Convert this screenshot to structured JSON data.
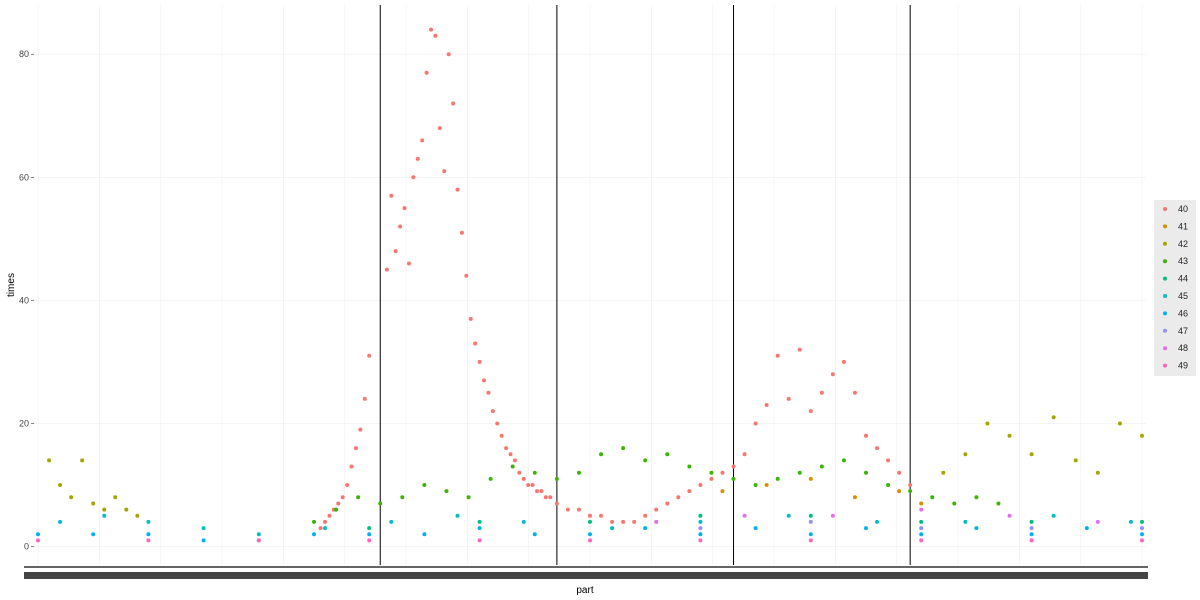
{
  "chart_data": {
    "type": "scatter",
    "title": "",
    "xlabel": "part",
    "ylabel": "times",
    "ylim": [
      -3,
      88
    ],
    "yticks": [
      0,
      20,
      40,
      60,
      80
    ],
    "y_tick_labels": [
      "0",
      "20",
      "40",
      "60",
      "80"
    ],
    "xlim": [
      0,
      1000
    ],
    "x_tick_labels_overplotted": true,
    "grid": true,
    "legend_position": "right",
    "vlines": [
      310,
      470,
      630,
      790
    ],
    "colors": {
      "40": "#F8766D",
      "41": "#D89000",
      "42": "#A3A500",
      "43": "#39B600",
      "44": "#00BF7D",
      "45": "#00BFC4",
      "46": "#00B0F6",
      "47": "#9590FF",
      "48": "#E76BF3",
      "49": "#FF62BC"
    },
    "series": [
      {
        "name": "40",
        "points": [
          [
            316,
            45
          ],
          [
            320,
            57
          ],
          [
            324,
            48
          ],
          [
            328,
            52
          ],
          [
            332,
            55
          ],
          [
            336,
            46
          ],
          [
            340,
            60
          ],
          [
            344,
            63
          ],
          [
            348,
            66
          ],
          [
            352,
            77
          ],
          [
            356,
            84
          ],
          [
            360,
            83
          ],
          [
            364,
            68
          ],
          [
            368,
            61
          ],
          [
            372,
            80
          ],
          [
            376,
            72
          ],
          [
            380,
            58
          ],
          [
            384,
            51
          ],
          [
            388,
            44
          ],
          [
            392,
            37
          ],
          [
            396,
            33
          ],
          [
            400,
            30
          ],
          [
            404,
            27
          ],
          [
            408,
            25
          ],
          [
            412,
            22
          ],
          [
            416,
            20
          ],
          [
            420,
            18
          ],
          [
            424,
            16
          ],
          [
            428,
            15
          ],
          [
            432,
            14
          ],
          [
            436,
            12
          ],
          [
            440,
            11
          ],
          [
            444,
            10
          ],
          [
            448,
            10
          ],
          [
            452,
            9
          ],
          [
            456,
            9
          ],
          [
            460,
            8
          ],
          [
            464,
            8
          ],
          [
            470,
            7
          ],
          [
            480,
            6
          ],
          [
            490,
            6
          ],
          [
            500,
            5
          ],
          [
            510,
            5
          ],
          [
            520,
            4
          ],
          [
            530,
            4
          ],
          [
            540,
            4
          ],
          [
            550,
            5
          ],
          [
            560,
            6
          ],
          [
            570,
            7
          ],
          [
            580,
            8
          ],
          [
            590,
            9
          ],
          [
            600,
            10
          ],
          [
            610,
            11
          ],
          [
            620,
            12
          ],
          [
            630,
            13
          ],
          [
            640,
            15
          ],
          [
            650,
            20
          ],
          [
            660,
            23
          ],
          [
            670,
            31
          ],
          [
            680,
            24
          ],
          [
            690,
            32
          ],
          [
            700,
            22
          ],
          [
            710,
            25
          ],
          [
            720,
            28
          ],
          [
            730,
            30
          ],
          [
            740,
            25
          ],
          [
            750,
            18
          ],
          [
            760,
            16
          ],
          [
            770,
            14
          ],
          [
            780,
            12
          ],
          [
            790,
            10
          ],
          [
            300,
            31
          ],
          [
            296,
            24
          ],
          [
            292,
            19
          ],
          [
            288,
            16
          ],
          [
            284,
            13
          ],
          [
            280,
            10
          ],
          [
            276,
            8
          ],
          [
            272,
            7
          ],
          [
            268,
            6
          ],
          [
            264,
            5
          ],
          [
            260,
            4
          ],
          [
            256,
            3
          ]
        ]
      },
      {
        "name": "41",
        "points": [
          [
            620,
            9
          ],
          [
            660,
            10
          ],
          [
            700,
            11
          ],
          [
            740,
            8
          ],
          [
            780,
            9
          ],
          [
            800,
            7
          ]
        ]
      },
      {
        "name": "42",
        "points": [
          [
            10,
            14
          ],
          [
            20,
            10
          ],
          [
            30,
            8
          ],
          [
            40,
            14
          ],
          [
            50,
            7
          ],
          [
            60,
            6
          ],
          [
            70,
            8
          ],
          [
            80,
            6
          ],
          [
            90,
            5
          ],
          [
            820,
            12
          ],
          [
            840,
            15
          ],
          [
            860,
            20
          ],
          [
            880,
            18
          ],
          [
            900,
            15
          ],
          [
            920,
            21
          ],
          [
            940,
            14
          ],
          [
            960,
            12
          ],
          [
            980,
            20
          ],
          [
            1000,
            18
          ]
        ]
      },
      {
        "name": "43",
        "points": [
          [
            250,
            4
          ],
          [
            270,
            6
          ],
          [
            290,
            8
          ],
          [
            310,
            7
          ],
          [
            330,
            8
          ],
          [
            350,
            10
          ],
          [
            370,
            9
          ],
          [
            390,
            8
          ],
          [
            410,
            11
          ],
          [
            430,
            13
          ],
          [
            450,
            12
          ],
          [
            470,
            11
          ],
          [
            490,
            12
          ],
          [
            510,
            15
          ],
          [
            530,
            16
          ],
          [
            550,
            14
          ],
          [
            570,
            15
          ],
          [
            590,
            13
          ],
          [
            610,
            12
          ],
          [
            630,
            11
          ],
          [
            650,
            10
          ],
          [
            670,
            11
          ],
          [
            690,
            12
          ],
          [
            710,
            13
          ],
          [
            730,
            14
          ],
          [
            750,
            12
          ],
          [
            770,
            10
          ],
          [
            790,
            9
          ],
          [
            810,
            8
          ],
          [
            830,
            7
          ],
          [
            850,
            8
          ],
          [
            870,
            7
          ]
        ]
      },
      {
        "name": "44",
        "points": [
          [
            300,
            3
          ],
          [
            400,
            4
          ],
          [
            500,
            4
          ],
          [
            600,
            5
          ],
          [
            700,
            5
          ],
          [
            800,
            4
          ],
          [
            900,
            4
          ],
          [
            1000,
            4
          ]
        ]
      },
      {
        "name": "45",
        "points": [
          [
            20,
            4
          ],
          [
            60,
            5
          ],
          [
            100,
            4
          ],
          [
            150,
            3
          ],
          [
            200,
            2
          ],
          [
            260,
            3
          ],
          [
            320,
            4
          ],
          [
            380,
            5
          ],
          [
            440,
            4
          ],
          [
            520,
            3
          ],
          [
            600,
            4
          ],
          [
            680,
            5
          ],
          [
            760,
            4
          ],
          [
            840,
            4
          ],
          [
            920,
            5
          ],
          [
            990,
            4
          ]
        ]
      },
      {
        "name": "46",
        "points": [
          [
            0,
            2
          ],
          [
            50,
            2
          ],
          [
            100,
            2
          ],
          [
            150,
            1
          ],
          [
            200,
            1
          ],
          [
            250,
            2
          ],
          [
            300,
            2
          ],
          [
            350,
            2
          ],
          [
            400,
            3
          ],
          [
            450,
            2
          ],
          [
            500,
            2
          ],
          [
            550,
            3
          ],
          [
            600,
            2
          ],
          [
            650,
            3
          ],
          [
            700,
            2
          ],
          [
            750,
            3
          ],
          [
            800,
            2
          ],
          [
            850,
            3
          ],
          [
            900,
            2
          ],
          [
            950,
            3
          ],
          [
            1000,
            2
          ]
        ]
      },
      {
        "name": "47",
        "points": [
          [
            600,
            3
          ],
          [
            700,
            4
          ],
          [
            800,
            3
          ],
          [
            900,
            3
          ],
          [
            1000,
            3
          ]
        ]
      },
      {
        "name": "48",
        "points": [
          [
            560,
            4
          ],
          [
            640,
            5
          ],
          [
            720,
            5
          ],
          [
            800,
            6
          ],
          [
            880,
            5
          ],
          [
            960,
            4
          ]
        ]
      },
      {
        "name": "49",
        "points": [
          [
            0,
            1
          ],
          [
            100,
            1
          ],
          [
            200,
            1
          ],
          [
            300,
            1
          ],
          [
            400,
            1
          ],
          [
            500,
            1
          ],
          [
            600,
            1
          ],
          [
            700,
            1
          ],
          [
            800,
            1
          ],
          [
            900,
            1
          ],
          [
            1000,
            1
          ]
        ]
      }
    ]
  }
}
